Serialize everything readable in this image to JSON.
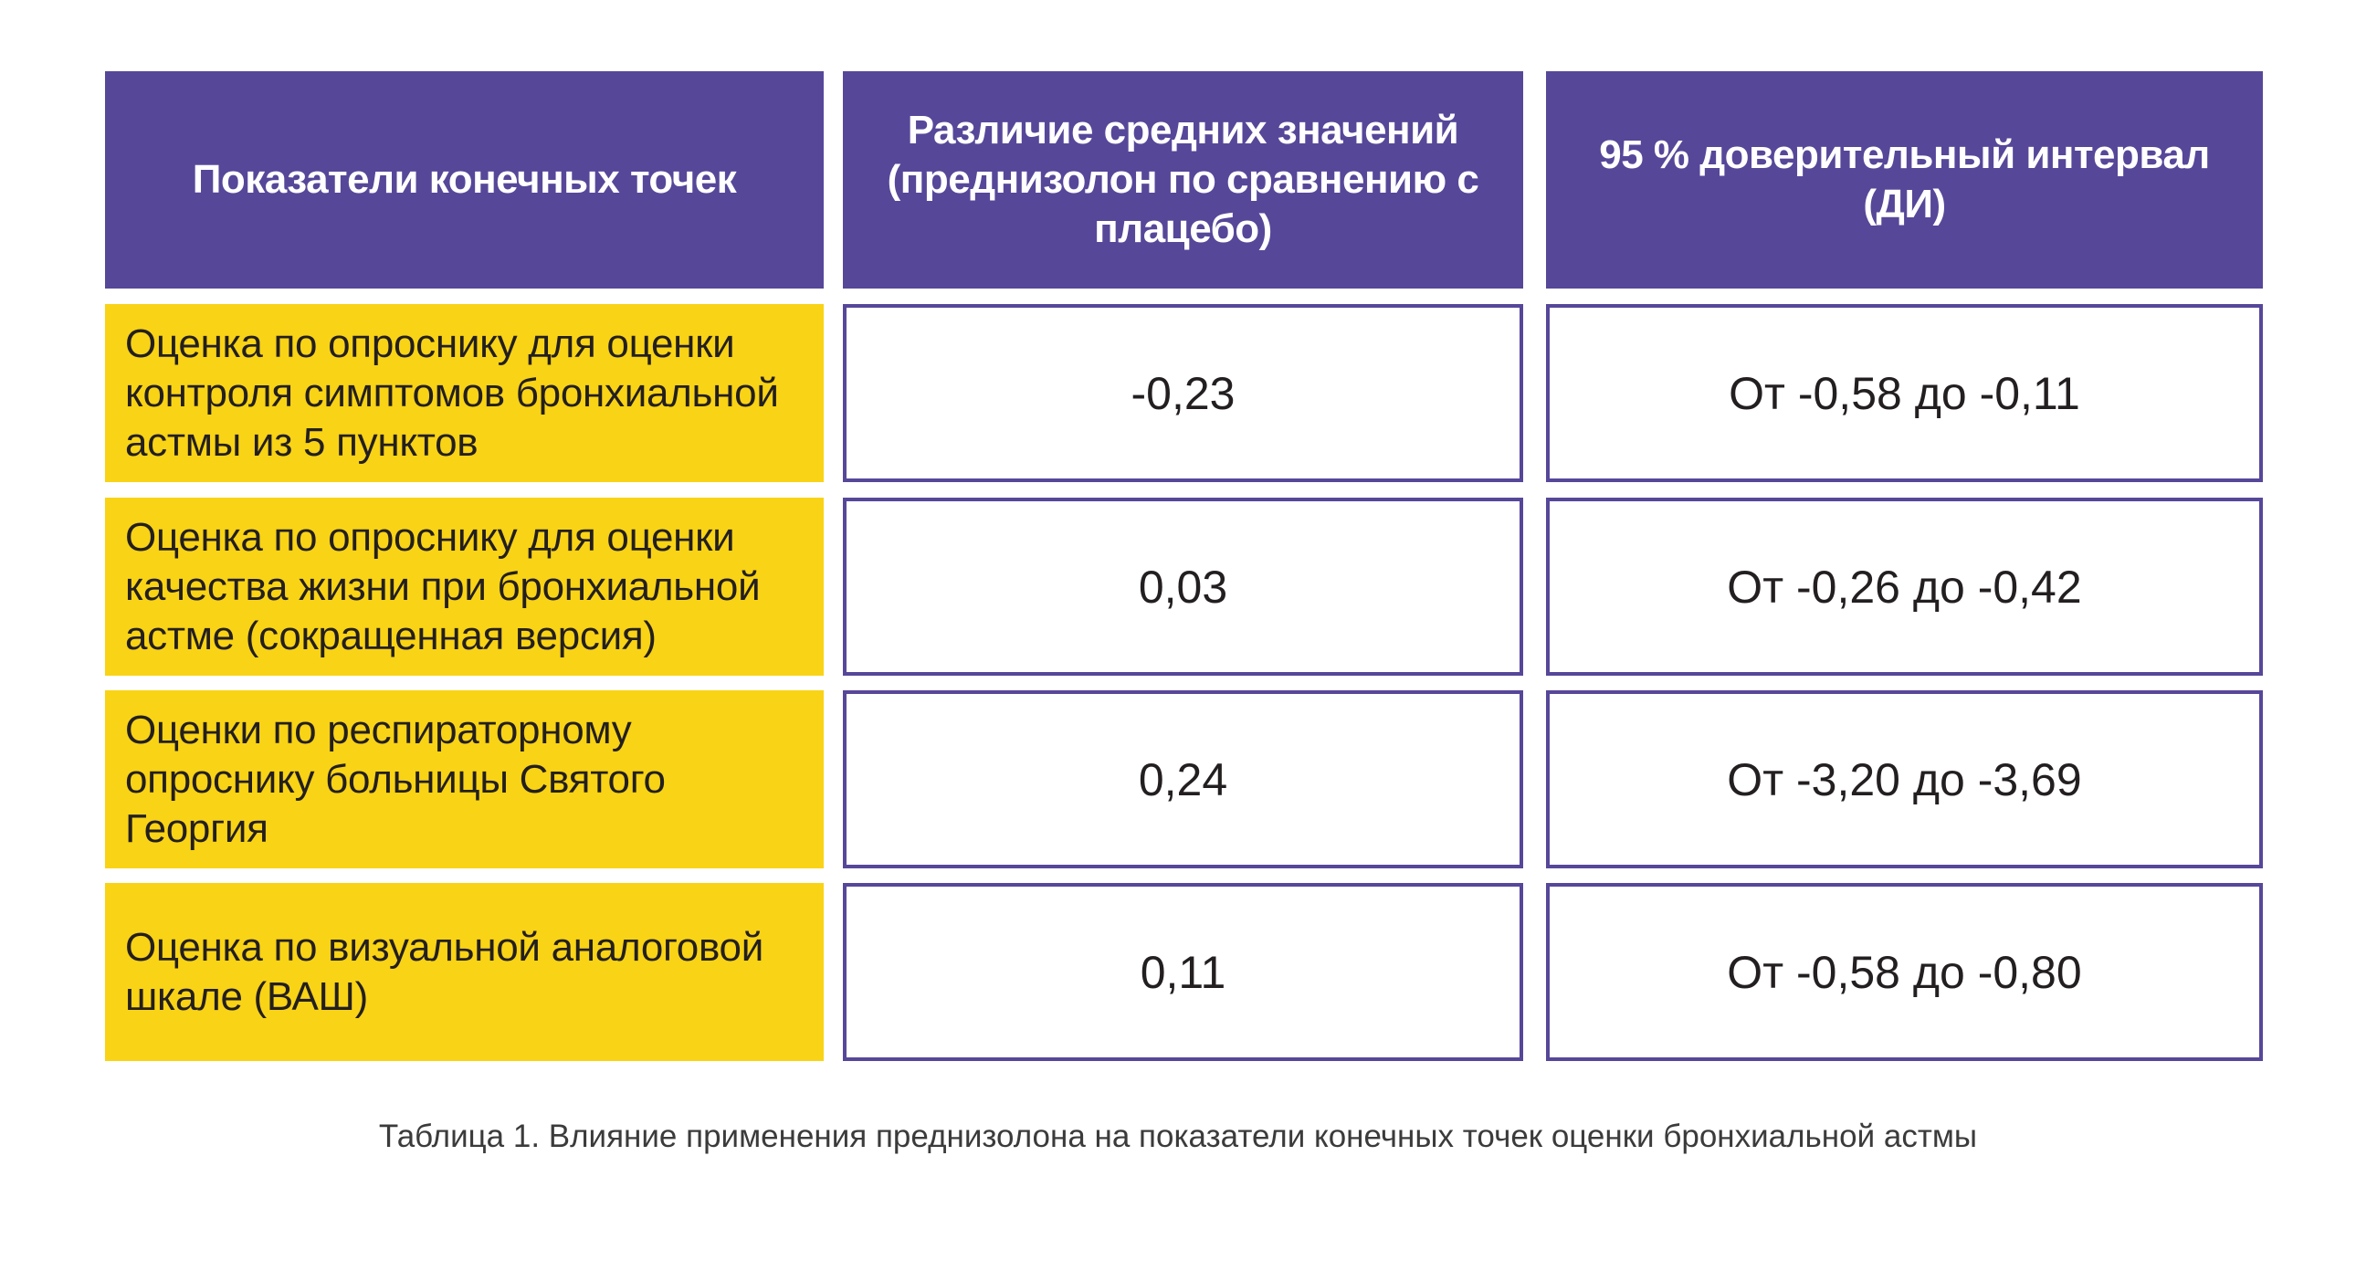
{
  "header": {
    "col1": "Показатели конечных точек",
    "col2": "Различие средних значений (преднизолон по сравнению с плацебо)",
    "col3": "95 % доверительный интервал (ДИ)"
  },
  "rows": [
    {
      "label": "Оценка по опроснику для оценки контроля симптомов бронхиальной астмы из 5 пунктов",
      "diff": "-0,23",
      "ci": "От -0,58 до -0,11"
    },
    {
      "label": "Оценка по опроснику для оценки качества жизни при бронхиальной астме (сокращенная версия)",
      "diff": "0,03",
      "ci": "От -0,26 до -0,42"
    },
    {
      "label": "Оценки по респираторному опроснику больницы Святого Георгия",
      "diff": "0,24",
      "ci": "От -3,20 до -3,69"
    },
    {
      "label": "Оценка по визуальной аналоговой шкале (ВАШ)",
      "diff": "0,11",
      "ci": "От -0,58 до -0,80"
    }
  ],
  "caption": "Таблица 1. Влияние применения преднизолона на показатели конечных точек оценки бронхиальной астмы",
  "colors": {
    "header_bg": "#574799",
    "label_bg": "#f9d315",
    "border": "#574799"
  }
}
